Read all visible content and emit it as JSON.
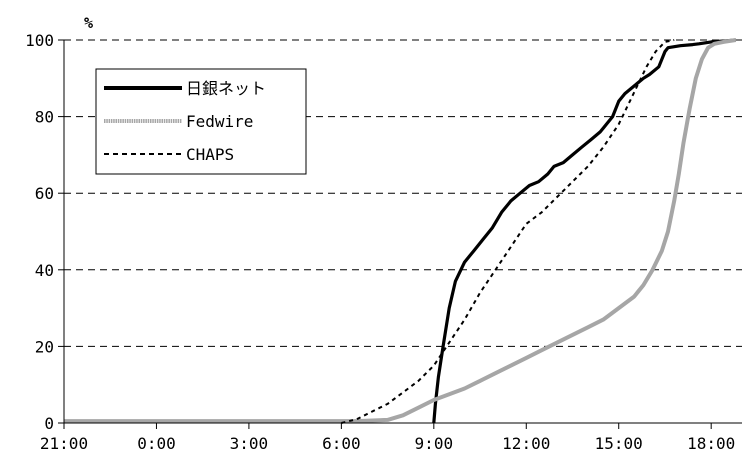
{
  "chart_data": {
    "type": "line",
    "ylabel": "%",
    "xlim": [
      -3,
      19
    ],
    "ylim": [
      0,
      100
    ],
    "x_ticks": [
      {
        "value": -3,
        "label": "21:00"
      },
      {
        "value": 0,
        "label": "0:00"
      },
      {
        "value": 3,
        "label": "3:00"
      },
      {
        "value": 6,
        "label": "6:00"
      },
      {
        "value": 9,
        "label": "9:00"
      },
      {
        "value": 12,
        "label": "12:00"
      },
      {
        "value": 15,
        "label": "15:00"
      },
      {
        "value": 18,
        "label": "18:00"
      }
    ],
    "y_ticks": [
      0,
      20,
      40,
      60,
      80,
      100
    ],
    "grid": "horizontal-dashed",
    "legend_position": "top-left",
    "series": [
      {
        "name": "日銀ネット",
        "color": "#000000",
        "style": "solid",
        "points": [
          [
            9.0,
            0
          ],
          [
            9.05,
            5
          ],
          [
            9.15,
            12
          ],
          [
            9.3,
            20
          ],
          [
            9.5,
            30
          ],
          [
            9.7,
            37
          ],
          [
            10.0,
            42
          ],
          [
            10.3,
            45
          ],
          [
            10.6,
            48
          ],
          [
            10.9,
            51
          ],
          [
            11.2,
            55
          ],
          [
            11.5,
            58
          ],
          [
            11.8,
            60
          ],
          [
            12.1,
            62
          ],
          [
            12.4,
            63
          ],
          [
            12.7,
            65
          ],
          [
            12.9,
            67
          ],
          [
            13.2,
            68
          ],
          [
            13.5,
            70
          ],
          [
            13.8,
            72
          ],
          [
            14.1,
            74
          ],
          [
            14.4,
            76
          ],
          [
            14.6,
            78
          ],
          [
            14.8,
            80
          ],
          [
            15.0,
            84
          ],
          [
            15.2,
            86
          ],
          [
            15.5,
            88
          ],
          [
            15.8,
            90
          ],
          [
            16.0,
            91
          ],
          [
            16.3,
            93
          ],
          [
            16.5,
            97
          ],
          [
            16.6,
            98
          ],
          [
            17.0,
            98.5
          ],
          [
            17.4,
            98.8
          ],
          [
            17.6,
            99
          ],
          [
            18.0,
            99.5
          ],
          [
            18.5,
            99.8
          ],
          [
            18.8,
            100
          ]
        ]
      },
      {
        "name": "Fedwire",
        "color": "#a6a6a6",
        "style": "solid-thick",
        "points": [
          [
            -3,
            0.5
          ],
          [
            6.5,
            0.5
          ],
          [
            7.5,
            0.8
          ],
          [
            8.0,
            2
          ],
          [
            8.5,
            4
          ],
          [
            9.0,
            6
          ],
          [
            9.5,
            7.5
          ],
          [
            10.0,
            9
          ],
          [
            10.5,
            11
          ],
          [
            11.0,
            13
          ],
          [
            11.5,
            15
          ],
          [
            12.0,
            17
          ],
          [
            12.5,
            19
          ],
          [
            13.0,
            21
          ],
          [
            13.5,
            23
          ],
          [
            14.0,
            25
          ],
          [
            14.5,
            27
          ],
          [
            15.0,
            30
          ],
          [
            15.5,
            33
          ],
          [
            15.8,
            36
          ],
          [
            16.1,
            40
          ],
          [
            16.4,
            45
          ],
          [
            16.6,
            50
          ],
          [
            16.8,
            58
          ],
          [
            16.95,
            65
          ],
          [
            17.1,
            73
          ],
          [
            17.3,
            82
          ],
          [
            17.5,
            90
          ],
          [
            17.7,
            95
          ],
          [
            17.9,
            98
          ],
          [
            18.1,
            99
          ],
          [
            18.4,
            99.5
          ],
          [
            18.8,
            100
          ]
        ]
      },
      {
        "name": "CHAPS",
        "color": "#000000",
        "style": "dotted",
        "points": [
          [
            6.0,
            0
          ],
          [
            6.5,
            1
          ],
          [
            7.0,
            3
          ],
          [
            7.5,
            5
          ],
          [
            8.0,
            8
          ],
          [
            8.5,
            11
          ],
          [
            9.0,
            15
          ],
          [
            9.5,
            21
          ],
          [
            10.0,
            27
          ],
          [
            10.5,
            34
          ],
          [
            11.0,
            40
          ],
          [
            11.5,
            46
          ],
          [
            12.0,
            52
          ],
          [
            12.5,
            55
          ],
          [
            13.0,
            59
          ],
          [
            13.5,
            63
          ],
          [
            14.0,
            67
          ],
          [
            14.5,
            72
          ],
          [
            15.0,
            78
          ],
          [
            15.3,
            83
          ],
          [
            15.6,
            88
          ],
          [
            15.9,
            93
          ],
          [
            16.2,
            97
          ],
          [
            16.5,
            99.5
          ],
          [
            16.8,
            100
          ]
        ]
      }
    ]
  }
}
